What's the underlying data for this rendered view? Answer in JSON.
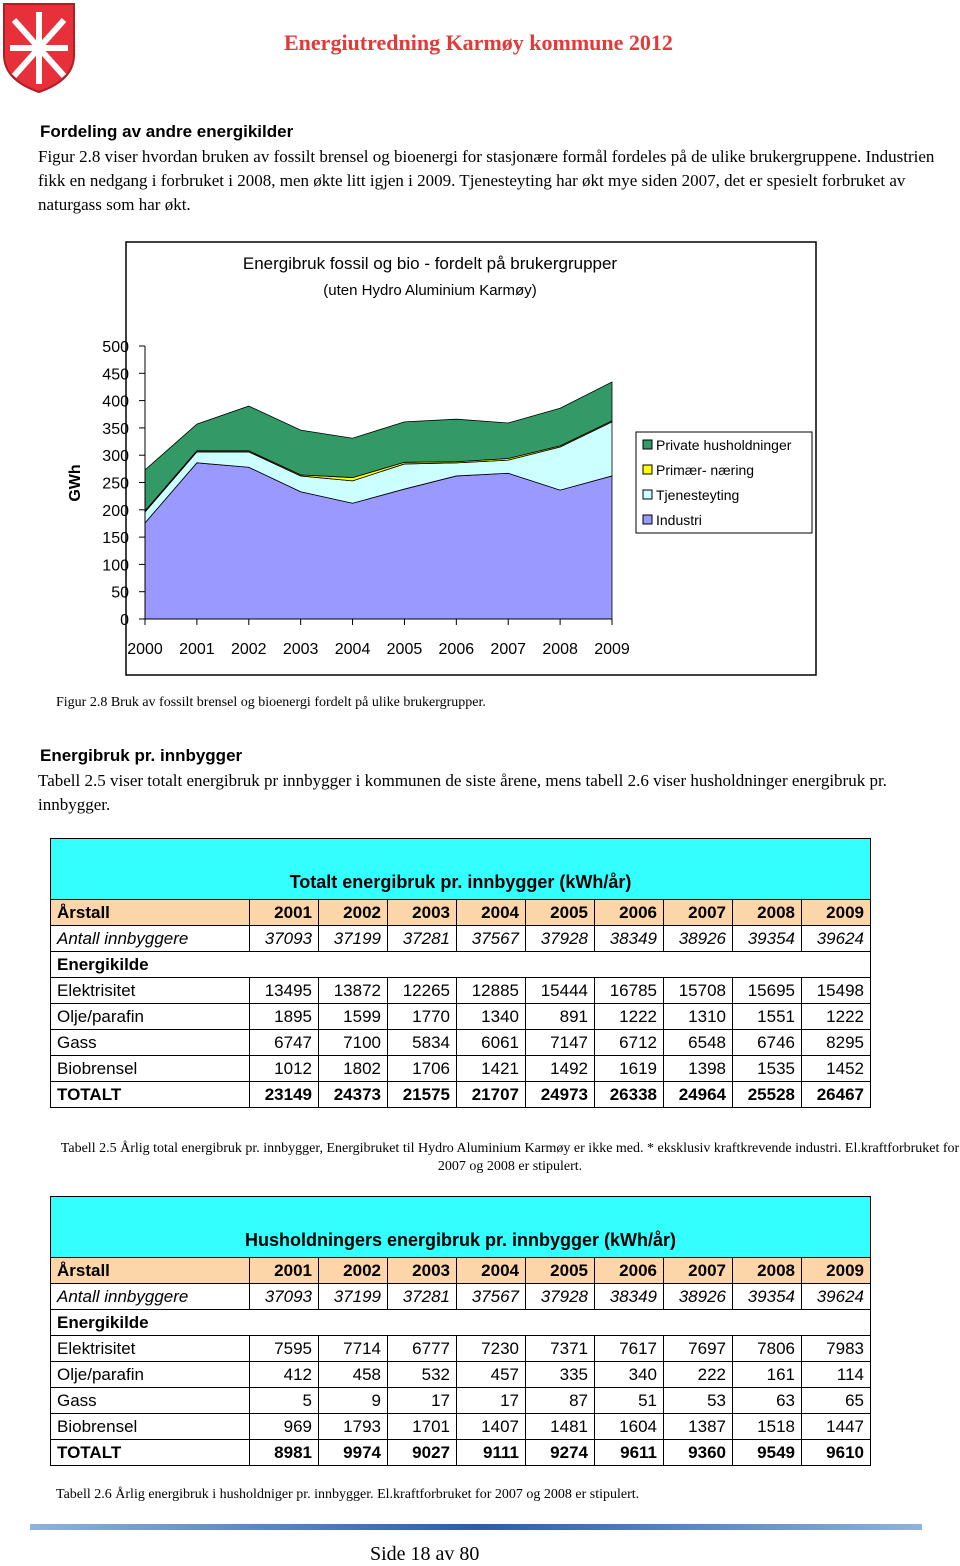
{
  "header": {
    "title": "Energiutredning Karmøy kommune 2012"
  },
  "section1": {
    "heading": "Fordeling av andre energikilder",
    "paragraph": "Figur 2.8 viser hvordan bruken av fossilt brensel og bioenergi for stasjonære formål fordeles på de ulike brukergruppene. Industrien fikk en nedgang i forbruket i 2008, men økte litt igjen i 2009. Tjenesteyting har økt mye siden 2007, det er spesielt forbruket av naturgass som har økt."
  },
  "chart_data": {
    "type": "stacked-area",
    "title": "Energibruk fossil og bio - fordelt på brukergrupper",
    "subtitle": "(uten Hydro Aluminium Karmøy)",
    "y_label": "GWh",
    "categories": [
      "2000",
      "2001",
      "2002",
      "2003",
      "2004",
      "2005",
      "2006",
      "2007",
      "2008",
      "2009"
    ],
    "series": [
      {
        "name": "Private  husholdninger",
        "color": "#339966",
        "values": [
          75,
          49,
          82,
          82,
          72,
          74,
          78,
          65,
          69,
          71
        ]
      },
      {
        "name": "Primær- næring",
        "color": "#ffff00",
        "values": [
          2,
          2,
          2,
          2,
          6,
          3,
          2,
          3,
          2,
          2
        ]
      },
      {
        "name": "Tjenesteyting",
        "color": "#ccffff",
        "values": [
          20,
          20,
          28,
          29,
          41,
          46,
          24,
          24,
          79,
          99
        ]
      },
      {
        "name": "Industri",
        "color": "#9999ff",
        "values": [
          176,
          286,
          278,
          233,
          212,
          238,
          262,
          267,
          236,
          262
        ]
      }
    ],
    "ylim": [
      0,
      500
    ],
    "yticks": [
      0,
      50,
      100,
      150,
      200,
      250,
      300,
      350,
      400,
      450,
      500
    ],
    "legend": "right"
  },
  "figure_caption": "Figur 2.8 Bruk av fossilt brensel og bioenergi fordelt på ulike brukergrupper.",
  "section2": {
    "heading": "Energibruk pr. innbygger",
    "paragraph": "Tabell 2.5 viser totalt energibruk pr innbygger i kommunen de siste årene, mens tabell 2.6 viser husholdninger energibruk pr. innbygger."
  },
  "table1": {
    "title": "Totalt energibruk pr. innbygger (kWh/år)",
    "header": [
      "Årstall",
      "2001",
      "2002",
      "2003",
      "2004",
      "2005",
      "2006",
      "2007",
      "2008",
      "2009"
    ],
    "rows": [
      [
        "Antall innbyggere",
        37093,
        37199,
        37281,
        37567,
        37928,
        38349,
        38926,
        39354,
        39624
      ],
      [
        "Energikilde"
      ],
      [
        "Elektrisitet",
        13495,
        13872,
        12265,
        12885,
        15444,
        16785,
        15708,
        15695,
        15498
      ],
      [
        "Olje/parafin",
        1895,
        1599,
        1770,
        1340,
        891,
        1222,
        1310,
        1551,
        1222
      ],
      [
        "Gass",
        6747,
        7100,
        5834,
        6061,
        7147,
        6712,
        6548,
        6746,
        8295
      ],
      [
        "Biobrensel",
        1012,
        1802,
        1706,
        1421,
        1492,
        1619,
        1398,
        1535,
        1452
      ],
      [
        "TOTALT",
        23149,
        24373,
        21575,
        21707,
        24973,
        26338,
        24964,
        25528,
        26467
      ]
    ],
    "caption": "Tabell 2.5 Årlig total energibruk pr. innbygger, Energibruket til Hydro Aluminium Karmøy er ikke med. * eksklusiv kraftkrevende industri. El.kraftforbruket for 2007 og 2008 er stipulert."
  },
  "table2": {
    "title": "Husholdningers energibruk pr. innbygger (kWh/år)",
    "header": [
      "Årstall",
      "2001",
      "2002",
      "2003",
      "2004",
      "2005",
      "2006",
      "2007",
      "2008",
      "2009"
    ],
    "rows": [
      [
        "Antall innbyggere",
        37093,
        37199,
        37281,
        37567,
        37928,
        38349,
        38926,
        39354,
        39624
      ],
      [
        "Energikilde"
      ],
      [
        "Elektrisitet",
        7595,
        7714,
        6777,
        7230,
        7371,
        7617,
        7697,
        7806,
        7983
      ],
      [
        "Olje/parafin",
        412,
        458,
        532,
        457,
        335,
        340,
        222,
        161,
        114
      ],
      [
        "Gass",
        5,
        9,
        17,
        17,
        87,
        51,
        53,
        63,
        65
      ],
      [
        "Biobrensel",
        969,
        1793,
        1701,
        1407,
        1481,
        1604,
        1387,
        1518,
        1447
      ],
      [
        "TOTALT",
        8981,
        9974,
        9027,
        9111,
        9274,
        9611,
        9360,
        9549,
        9610
      ]
    ],
    "caption": "Tabell 2.6 Årlig  energibruk i husholdniger pr. innbygger. El.kraftforbruket for 2007 og 2008 er stipulert."
  },
  "footer": {
    "page": "Side 18 av 80"
  }
}
